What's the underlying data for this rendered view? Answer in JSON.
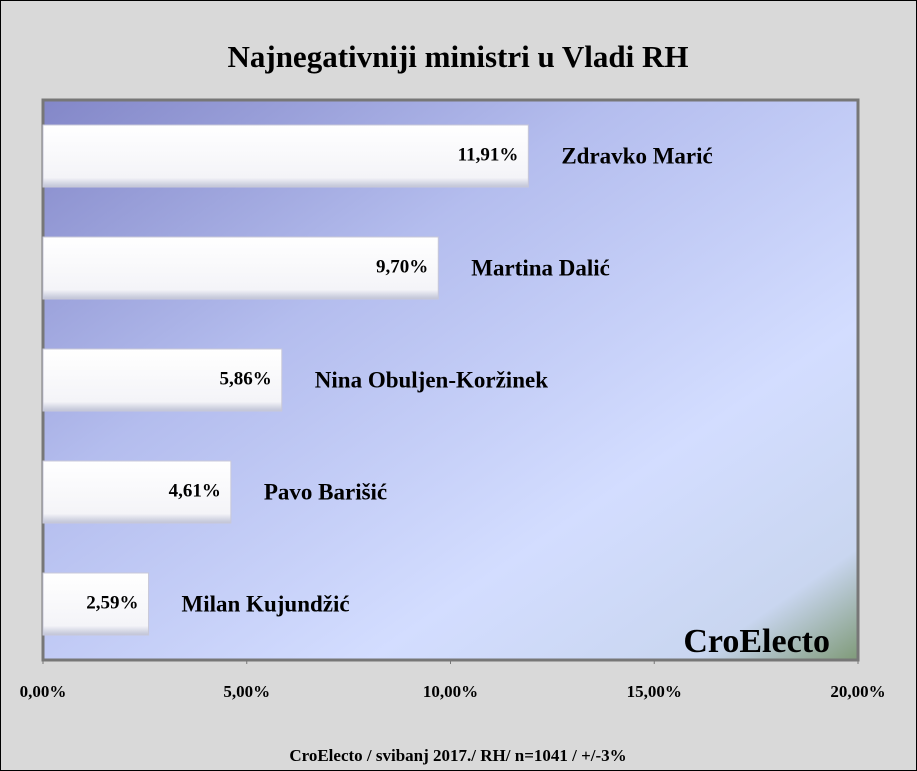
{
  "chart_data": {
    "type": "bar",
    "orientation": "horizontal",
    "title": "Najnegativniji ministri u Vladi RH",
    "categories": [
      "Zdravko Marić",
      "Martina Dalić",
      "Nina Obuljen-Koržinek",
      "Pavo Barišić",
      "Milan Kujundžić"
    ],
    "values": [
      11.91,
      9.7,
      5.86,
      4.61,
      2.59
    ],
    "value_labels": [
      "11,91%",
      "9,70%",
      "5,86%",
      "4,61%",
      "2,59%"
    ],
    "color": "#ffffff",
    "xlim": [
      0,
      20
    ],
    "xticks": [
      {
        "value": 0,
        "label": "0,00%"
      },
      {
        "value": 5,
        "label": "5,00%"
      },
      {
        "value": 10,
        "label": "10,00%"
      },
      {
        "value": 15,
        "label": "15,00%"
      },
      {
        "value": 20,
        "label": "20,00%"
      }
    ],
    "watermark": "CroElecto",
    "footnote": "CroElecto / svibanj 2017./ RH/ n=1041 / +/-3%"
  }
}
